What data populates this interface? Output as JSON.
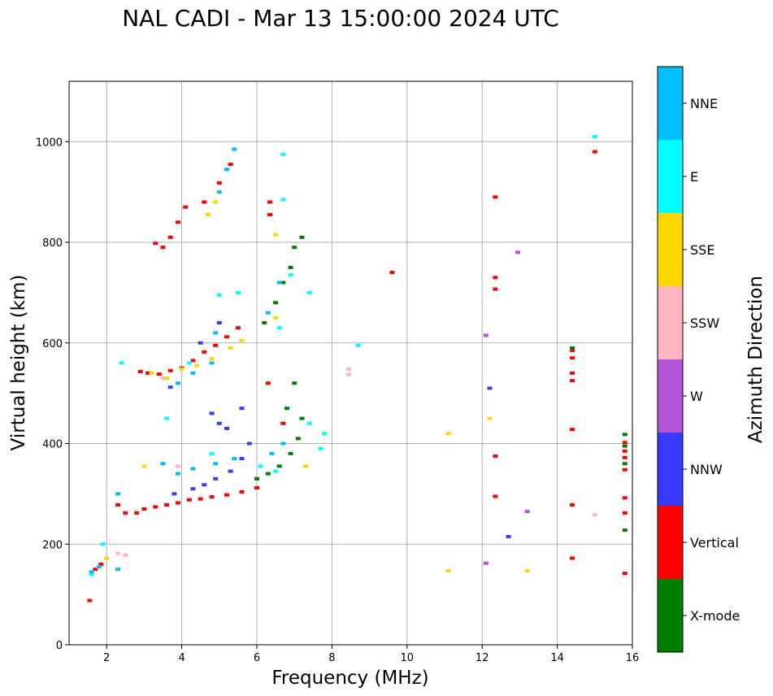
{
  "chart_data": {
    "type": "scatter",
    "title": "NAL CADI - Mar 13 15:00:00 2024 UTC",
    "xlabel": "Frequency (MHz)",
    "ylabel": "Virtual height (km)",
    "xlim": [
      1,
      16
    ],
    "ylim": [
      0,
      1120
    ],
    "xticks": [
      2,
      4,
      6,
      8,
      10,
      12,
      14,
      16
    ],
    "yticks": [
      0,
      200,
      400,
      600,
      800,
      1000
    ],
    "grid": true,
    "colorbar": {
      "label": "Azimuth Direction",
      "categories": [
        {
          "name": "X-mode",
          "color": "#008000"
        },
        {
          "name": "Vertical",
          "color": "#ff0000"
        },
        {
          "name": "NNW",
          "color": "#3a3aff"
        },
        {
          "name": "W",
          "color": "#b455d6"
        },
        {
          "name": "SSW",
          "color": "#ffb6c1"
        },
        {
          "name": "SSE",
          "color": "#ffd700"
        },
        {
          "name": "E",
          "color": "#00ffff"
        },
        {
          "name": "NNE",
          "color": "#00bfff"
        }
      ]
    },
    "series": [
      {
        "name": "Vertical",
        "points": [
          [
            2.3,
            278
          ],
          [
            2.5,
            262
          ],
          [
            2.8,
            262
          ],
          [
            3.0,
            270
          ],
          [
            3.3,
            274
          ],
          [
            3.6,
            278
          ],
          [
            3.9,
            282
          ],
          [
            4.2,
            288
          ],
          [
            4.5,
            290
          ],
          [
            4.8,
            294
          ],
          [
            5.2,
            298
          ],
          [
            5.6,
            304
          ],
          [
            6.0,
            312
          ],
          [
            1.55,
            88
          ],
          [
            1.7,
            150
          ],
          [
            1.85,
            160
          ],
          [
            2.9,
            543
          ],
          [
            3.1,
            540
          ],
          [
            3.4,
            538
          ],
          [
            3.7,
            545
          ],
          [
            4.0,
            550
          ],
          [
            4.3,
            565
          ],
          [
            4.6,
            582
          ],
          [
            4.9,
            595
          ],
          [
            5.2,
            612
          ],
          [
            5.5,
            630
          ],
          [
            3.3,
            798
          ],
          [
            3.5,
            790
          ],
          [
            3.7,
            810
          ],
          [
            3.9,
            840
          ],
          [
            4.1,
            870
          ],
          [
            4.6,
            880
          ],
          [
            5.0,
            918
          ],
          [
            5.3,
            955
          ],
          [
            6.35,
            880
          ],
          [
            6.35,
            855
          ],
          [
            12.35,
            890
          ],
          [
            12.35,
            730
          ],
          [
            12.35,
            707
          ],
          [
            12.35,
            375
          ],
          [
            12.35,
            295
          ],
          [
            15.0,
            980
          ],
          [
            14.4,
            585
          ],
          [
            14.4,
            570
          ],
          [
            14.4,
            540
          ],
          [
            14.4,
            525
          ],
          [
            14.4,
            428
          ],
          [
            14.4,
            278
          ],
          [
            14.4,
            172
          ],
          [
            15.8,
            402
          ],
          [
            15.8,
            385
          ],
          [
            15.8,
            372
          ],
          [
            15.8,
            348
          ],
          [
            15.8,
            292
          ],
          [
            15.8,
            262
          ],
          [
            15.8,
            142
          ],
          [
            9.6,
            740
          ],
          [
            6.3,
            520
          ],
          [
            6.7,
            440
          ]
        ]
      },
      {
        "name": "X-mode",
        "points": [
          [
            6.0,
            330
          ],
          [
            6.3,
            340
          ],
          [
            6.6,
            355
          ],
          [
            6.9,
            380
          ],
          [
            7.1,
            410
          ],
          [
            7.2,
            450
          ],
          [
            6.8,
            470
          ],
          [
            7.0,
            520
          ],
          [
            6.2,
            640
          ],
          [
            6.5,
            680
          ],
          [
            6.7,
            720
          ],
          [
            6.9,
            750
          ],
          [
            7.0,
            790
          ],
          [
            7.2,
            810
          ],
          [
            15.8,
            418
          ],
          [
            15.8,
            395
          ],
          [
            15.8,
            360
          ],
          [
            15.8,
            228
          ],
          [
            14.4,
            590
          ]
        ]
      },
      {
        "name": "NNW",
        "points": [
          [
            3.8,
            300
          ],
          [
            4.3,
            310
          ],
          [
            4.6,
            318
          ],
          [
            4.9,
            330
          ],
          [
            5.3,
            345
          ],
          [
            5.6,
            370
          ],
          [
            5.8,
            400
          ],
          [
            4.8,
            460
          ],
          [
            5.0,
            440
          ],
          [
            5.6,
            470
          ],
          [
            4.5,
            600
          ],
          [
            5.0,
            640
          ],
          [
            3.7,
            512
          ],
          [
            12.2,
            510
          ],
          [
            12.7,
            215
          ],
          [
            5.2,
            430
          ]
        ]
      },
      {
        "name": "W",
        "points": [
          [
            12.95,
            780
          ],
          [
            12.1,
            615
          ],
          [
            13.2,
            265
          ],
          [
            12.1,
            162
          ]
        ]
      },
      {
        "name": "SSW",
        "points": [
          [
            8.45,
            548
          ],
          [
            8.45,
            537
          ],
          [
            15.0,
            258
          ],
          [
            2.5,
            178
          ],
          [
            2.3,
            182
          ],
          [
            3.5,
            530
          ],
          [
            3.9,
            355
          ]
        ]
      },
      {
        "name": "SSE",
        "points": [
          [
            3.2,
            540
          ],
          [
            3.6,
            530
          ],
          [
            4.0,
            548
          ],
          [
            4.4,
            555
          ],
          [
            4.8,
            568
          ],
          [
            5.3,
            590
          ],
          [
            5.6,
            605
          ],
          [
            4.7,
            855
          ],
          [
            4.9,
            880
          ],
          [
            11.1,
            420
          ],
          [
            11.1,
            147
          ],
          [
            12.2,
            450
          ],
          [
            13.2,
            147
          ],
          [
            3.0,
            355
          ],
          [
            2.0,
            172
          ],
          [
            6.5,
            650
          ],
          [
            6.5,
            815
          ],
          [
            7.3,
            355
          ]
        ]
      },
      {
        "name": "E",
        "points": [
          [
            8.7,
            595
          ],
          [
            15.0,
            1010
          ],
          [
            6.7,
            975
          ],
          [
            6.7,
            885
          ],
          [
            5.0,
            695
          ],
          [
            5.5,
            700
          ],
          [
            6.6,
            630
          ],
          [
            7.4,
            440
          ],
          [
            7.7,
            390
          ],
          [
            7.8,
            420
          ],
          [
            4.8,
            380
          ],
          [
            6.1,
            355
          ],
          [
            6.5,
            345
          ],
          [
            4.2,
            560
          ],
          [
            3.6,
            450
          ],
          [
            1.6,
            140
          ],
          [
            1.9,
            200
          ],
          [
            2.4,
            560
          ],
          [
            6.9,
            735
          ],
          [
            7.4,
            700
          ]
        ]
      },
      {
        "name": "NNE",
        "points": [
          [
            1.6,
            145
          ],
          [
            1.8,
            155
          ],
          [
            2.3,
            150
          ],
          [
            2.3,
            300
          ],
          [
            3.5,
            360
          ],
          [
            3.9,
            340
          ],
          [
            4.3,
            350
          ],
          [
            4.9,
            360
          ],
          [
            5.4,
            370
          ],
          [
            6.4,
            380
          ],
          [
            6.7,
            400
          ],
          [
            3.9,
            520
          ],
          [
            4.3,
            540
          ],
          [
            4.8,
            560
          ],
          [
            5.0,
            900
          ],
          [
            5.2,
            945
          ],
          [
            5.4,
            985
          ],
          [
            6.6,
            720
          ],
          [
            6.3,
            660
          ],
          [
            4.9,
            620
          ]
        ]
      }
    ]
  }
}
